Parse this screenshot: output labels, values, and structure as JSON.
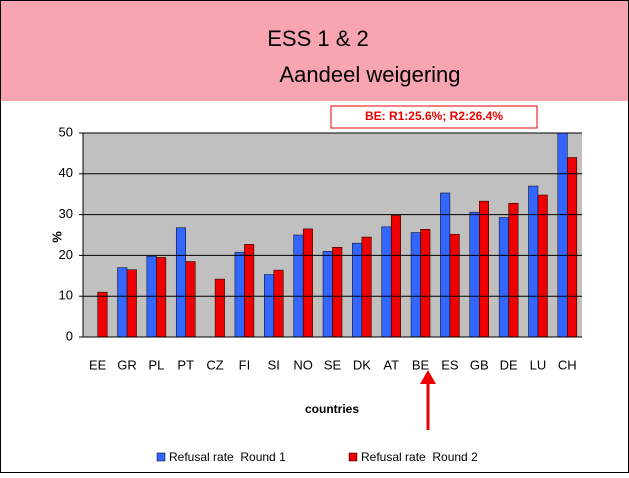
{
  "chart_data": {
    "type": "bar",
    "title": "ESS 1 & 2",
    "subtitle": "Aandeel weigering",
    "annotation": "BE: R1:25.6%; R2:26.4%",
    "ylabel": "%",
    "xlabel": "countries",
    "categories": [
      "EE",
      "GR",
      "PL",
      "PT",
      "CZ",
      "FI",
      "SI",
      "NO",
      "SE",
      "DK",
      "AT",
      "BE",
      "ES",
      "GB",
      "DE",
      "LU",
      "CH"
    ],
    "series": [
      {
        "name": "Refusal rate  Round 1",
        "color": "#3366ff",
        "values": [
          null,
          17,
          19.8,
          26.8,
          null,
          20.8,
          15.3,
          25,
          21,
          23,
          27,
          25.6,
          35.3,
          30.6,
          29.3,
          37,
          51
        ]
      },
      {
        "name": "Refusal rate  Round 2",
        "color": "#ee0000",
        "values": [
          11,
          16.5,
          19.5,
          18.5,
          14.2,
          22.7,
          16.4,
          26.5,
          22,
          24.5,
          29.8,
          26.4,
          25.2,
          33.3,
          32.8,
          34.8,
          44
        ]
      }
    ],
    "ylim": [
      0,
      50
    ],
    "yticks": [
      0,
      10,
      20,
      30,
      40,
      50
    ],
    "grid": true,
    "legend": "bottom"
  }
}
